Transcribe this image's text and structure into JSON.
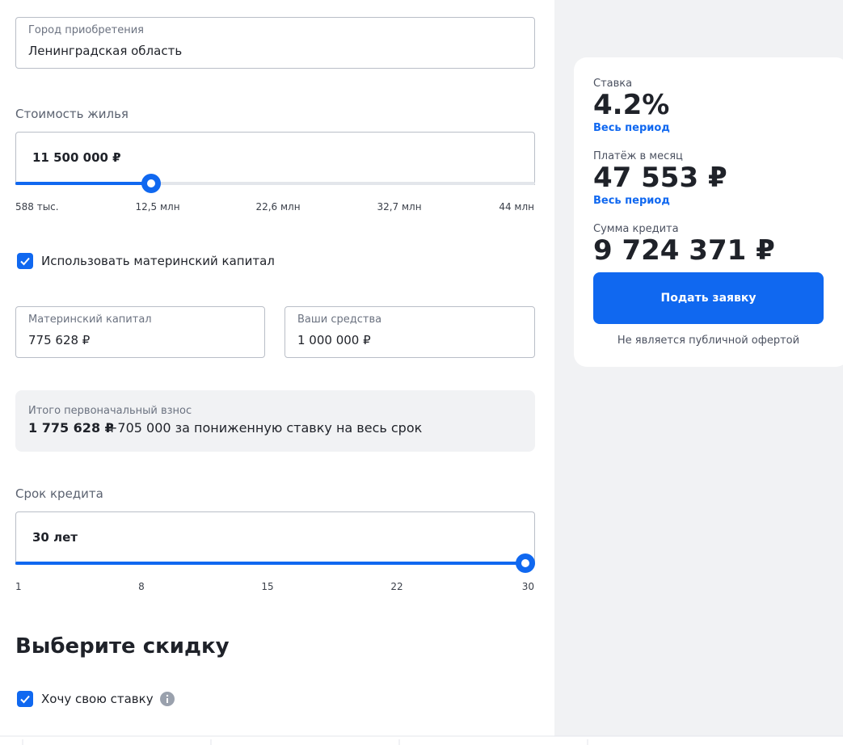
{
  "form": {
    "city": {
      "label": "Город приобретения",
      "value": "Ленинградская область"
    },
    "price": {
      "title": "Стоимость жилья",
      "value": "11 500 000 ₽",
      "scale": [
        "588 тыс.",
        "12,5 млн",
        "22,6 млн",
        "32,7 млн",
        "44 млн"
      ]
    },
    "maternity_checkbox": "Использовать материнский капитал",
    "maternity_capital": {
      "label": "Материнский капитал",
      "value": "775 628 ₽"
    },
    "own_funds": {
      "label": "Ваши средства",
      "value": "1 000 000 ₽"
    },
    "down_payment": {
      "label": "Итого первоначальный взнос",
      "value": "1 775 628 ₽",
      "note": "+705 000 за пониженную ставку на весь срок"
    },
    "term": {
      "title": "Срок кредита",
      "value": "30 лет",
      "scale": [
        "1",
        "8",
        "15",
        "22",
        "30"
      ]
    },
    "discount_title": "Выберите скидку",
    "own_rate_checkbox": "Хочу свою ставку"
  },
  "summary": {
    "rate": {
      "label": "Ставка",
      "value": "4.2%",
      "period": "Весь период"
    },
    "payment": {
      "label": "Платёж в месяц",
      "value": "47 553 ₽",
      "period": "Весь период"
    },
    "loan": {
      "label": "Сумма кредита",
      "value": "9 724 371 ₽"
    },
    "button": "Подать заявку",
    "disclaimer": "Не является публичной офертой"
  }
}
